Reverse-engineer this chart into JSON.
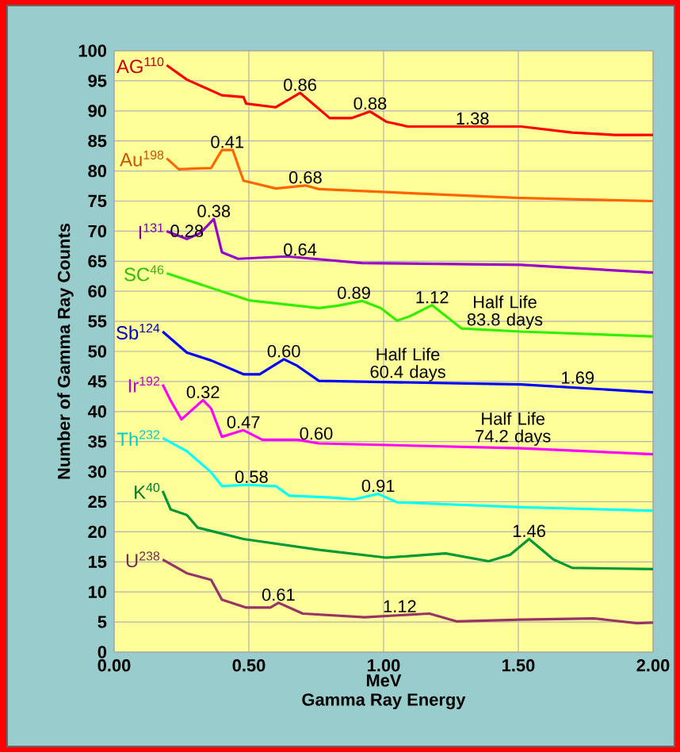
{
  "chart_data": {
    "type": "line",
    "xlabel": "Gamma Ray Energy",
    "ylabel": "Number of Gamma Ray Counts",
    "xlim": [
      0,
      2
    ],
    "ylim": [
      0,
      100
    ],
    "xticks": [
      {
        "value": 0,
        "label": "0.00"
      },
      {
        "value": 0.5,
        "label": "0.50"
      },
      {
        "value": 1,
        "label": "1.00"
      },
      {
        "value": 1.5,
        "label": "1.50"
      },
      {
        "value": 2,
        "label": "2.00"
      }
    ],
    "yticks": [
      0,
      5,
      10,
      15,
      20,
      25,
      30,
      35,
      40,
      45,
      50,
      55,
      60,
      65,
      70,
      75,
      80,
      85,
      90,
      95,
      100
    ],
    "grid": true,
    "series": [
      {
        "name": "AG$^{110}$",
        "color": "#ff0000",
        "x": [
          0.195,
          0.27,
          0.4,
          0.48,
          0.49,
          0.6,
          0.69,
          0.8,
          0.88,
          0.95,
          1.01,
          1.09,
          1.51,
          1.7,
          1.86,
          2.0
        ],
        "values": [
          97.6,
          95.2,
          92.6,
          92.3,
          91.2,
          90.6,
          93.0,
          88.8,
          88.8,
          89.9,
          88.2,
          87.4,
          87.4,
          86.4,
          86.0,
          86.0
        ]
      },
      {
        "name": "Au$^{198}$",
        "color": "#ff6600",
        "x": [
          0.195,
          0.24,
          0.36,
          0.4,
          0.44,
          0.48,
          0.6,
          0.71,
          0.76,
          1.51,
          2.0
        ],
        "values": [
          82.1,
          80.3,
          80.5,
          83.5,
          83.5,
          78.4,
          77.1,
          77.6,
          77.0,
          75.5,
          75.0
        ]
      },
      {
        "name": "I$^{131}$",
        "color": "#9900cc",
        "x": [
          0.195,
          0.27,
          0.32,
          0.37,
          0.4,
          0.46,
          0.64,
          0.92,
          1.51,
          2.0
        ],
        "values": [
          70.0,
          68.7,
          69.7,
          72.0,
          66.5,
          65.4,
          65.8,
          64.7,
          64.4,
          63.1
        ]
      },
      {
        "name": "SC$^{46}$",
        "color": "#33ee00",
        "x": [
          0.195,
          0.5,
          0.76,
          0.83,
          0.92,
          0.99,
          1.05,
          1.1,
          1.18,
          1.29,
          1.51,
          2.0
        ],
        "values": [
          63.0,
          58.5,
          57.2,
          57.6,
          58.4,
          57.2,
          55.1,
          55.9,
          57.7,
          53.8,
          53.3,
          52.5
        ]
      },
      {
        "name": "Sb$^{124}$",
        "color": "#0000ff",
        "x": [
          0.18,
          0.27,
          0.36,
          0.48,
          0.54,
          0.63,
          0.68,
          0.76,
          1.51,
          2.0
        ],
        "values": [
          53.3,
          49.8,
          48.5,
          46.2,
          46.2,
          48.7,
          47.6,
          45.1,
          44.5,
          43.2
        ]
      },
      {
        "name": "Ir$^{192}$",
        "color": "#ff00ff",
        "x": [
          0.18,
          0.21,
          0.25,
          0.33,
          0.36,
          0.4,
          0.48,
          0.55,
          0.68,
          0.76,
          1.51,
          2.0
        ],
        "values": [
          44.5,
          41.8,
          38.7,
          41.9,
          40.5,
          35.8,
          36.9,
          35.3,
          35.3,
          34.7,
          33.9,
          32.9
        ]
      },
      {
        "name": "Th$^{232}$",
        "color": "#00ffff",
        "x": [
          0.18,
          0.27,
          0.36,
          0.4,
          0.49,
          0.6,
          0.65,
          0.8,
          0.89,
          0.98,
          1.05,
          1.51,
          2.0
        ],
        "values": [
          35.6,
          33.4,
          29.9,
          27.6,
          27.8,
          27.6,
          26.0,
          25.7,
          25.4,
          26.3,
          24.9,
          24.1,
          23.5
        ]
      },
      {
        "name": "K$^{40}$",
        "color": "#009933",
        "x": [
          0.18,
          0.21,
          0.27,
          0.31,
          0.48,
          0.76,
          1.01,
          1.23,
          1.39,
          1.47,
          1.54,
          1.63,
          1.7,
          2.0
        ],
        "values": [
          26.8,
          23.7,
          22.8,
          20.7,
          18.8,
          17.0,
          15.7,
          16.4,
          15.1,
          16.2,
          18.8,
          15.4,
          14.0,
          13.8
        ]
      },
      {
        "name": "U$^{238}$",
        "color": "#993366",
        "x": [
          0.18,
          0.27,
          0.36,
          0.4,
          0.49,
          0.58,
          0.61,
          0.7,
          0.93,
          1.17,
          1.27,
          1.51,
          1.78,
          1.94,
          2.0
        ],
        "values": [
          15.4,
          13.1,
          12.0,
          8.7,
          7.4,
          7.4,
          8.2,
          6.4,
          5.8,
          6.4,
          5.1,
          5.4,
          5.6,
          4.8,
          4.9
        ]
      }
    ],
    "annotations": [
      "MeV",
      {
        "text": "0.86",
        "x": 0.69,
        "y": 93.0
      },
      {
        "text": "0.88",
        "x": 0.95,
        "y": 89.9
      },
      {
        "text": "1.38",
        "x": 1.33,
        "y": 87.4
      },
      {
        "text": "0.41",
        "x": 0.42,
        "y": 83.5
      },
      {
        "text": "0.68",
        "x": 0.71,
        "y": 77.6
      },
      {
        "text": "0.28",
        "x": 0.27,
        "y": 68.7
      },
      {
        "text": "0.38",
        "x": 0.37,
        "y": 72.0
      },
      {
        "text": "0.64",
        "x": 0.69,
        "y": 65.6
      },
      {
        "text": "0.89",
        "x": 0.89,
        "y": 58.4
      },
      {
        "text": "1.12",
        "x": 1.18,
        "y": 57.7
      },
      {
        "text": "Half Life 83.8 days",
        "x": 1.45,
        "y": 53.4
      },
      {
        "text": "0.60",
        "x": 0.63,
        "y": 48.7
      },
      {
        "text": "Half Life 60.4 days",
        "x": 1.09,
        "y": 44.7
      },
      {
        "text": "1.69",
        "x": 1.72,
        "y": 44.3
      },
      {
        "text": "0.32",
        "x": 0.33,
        "y": 41.9
      },
      {
        "text": "0.47",
        "x": 0.48,
        "y": 36.9
      },
      {
        "text": "0.60",
        "x": 0.75,
        "y": 35.0
      },
      {
        "text": "Half Life 74.2 days",
        "x": 1.48,
        "y": 34.0
      },
      {
        "text": "0.58",
        "x": 0.51,
        "y": 27.8
      },
      {
        "text": "0.91",
        "x": 0.98,
        "y": 26.3
      },
      {
        "text": "1.46",
        "x": 1.54,
        "y": 18.8
      },
      {
        "text": "0.61",
        "x": 0.61,
        "y": 8.2
      },
      {
        "text": "1.12",
        "x": 1.06,
        "y": 6.3
      }
    ]
  }
}
